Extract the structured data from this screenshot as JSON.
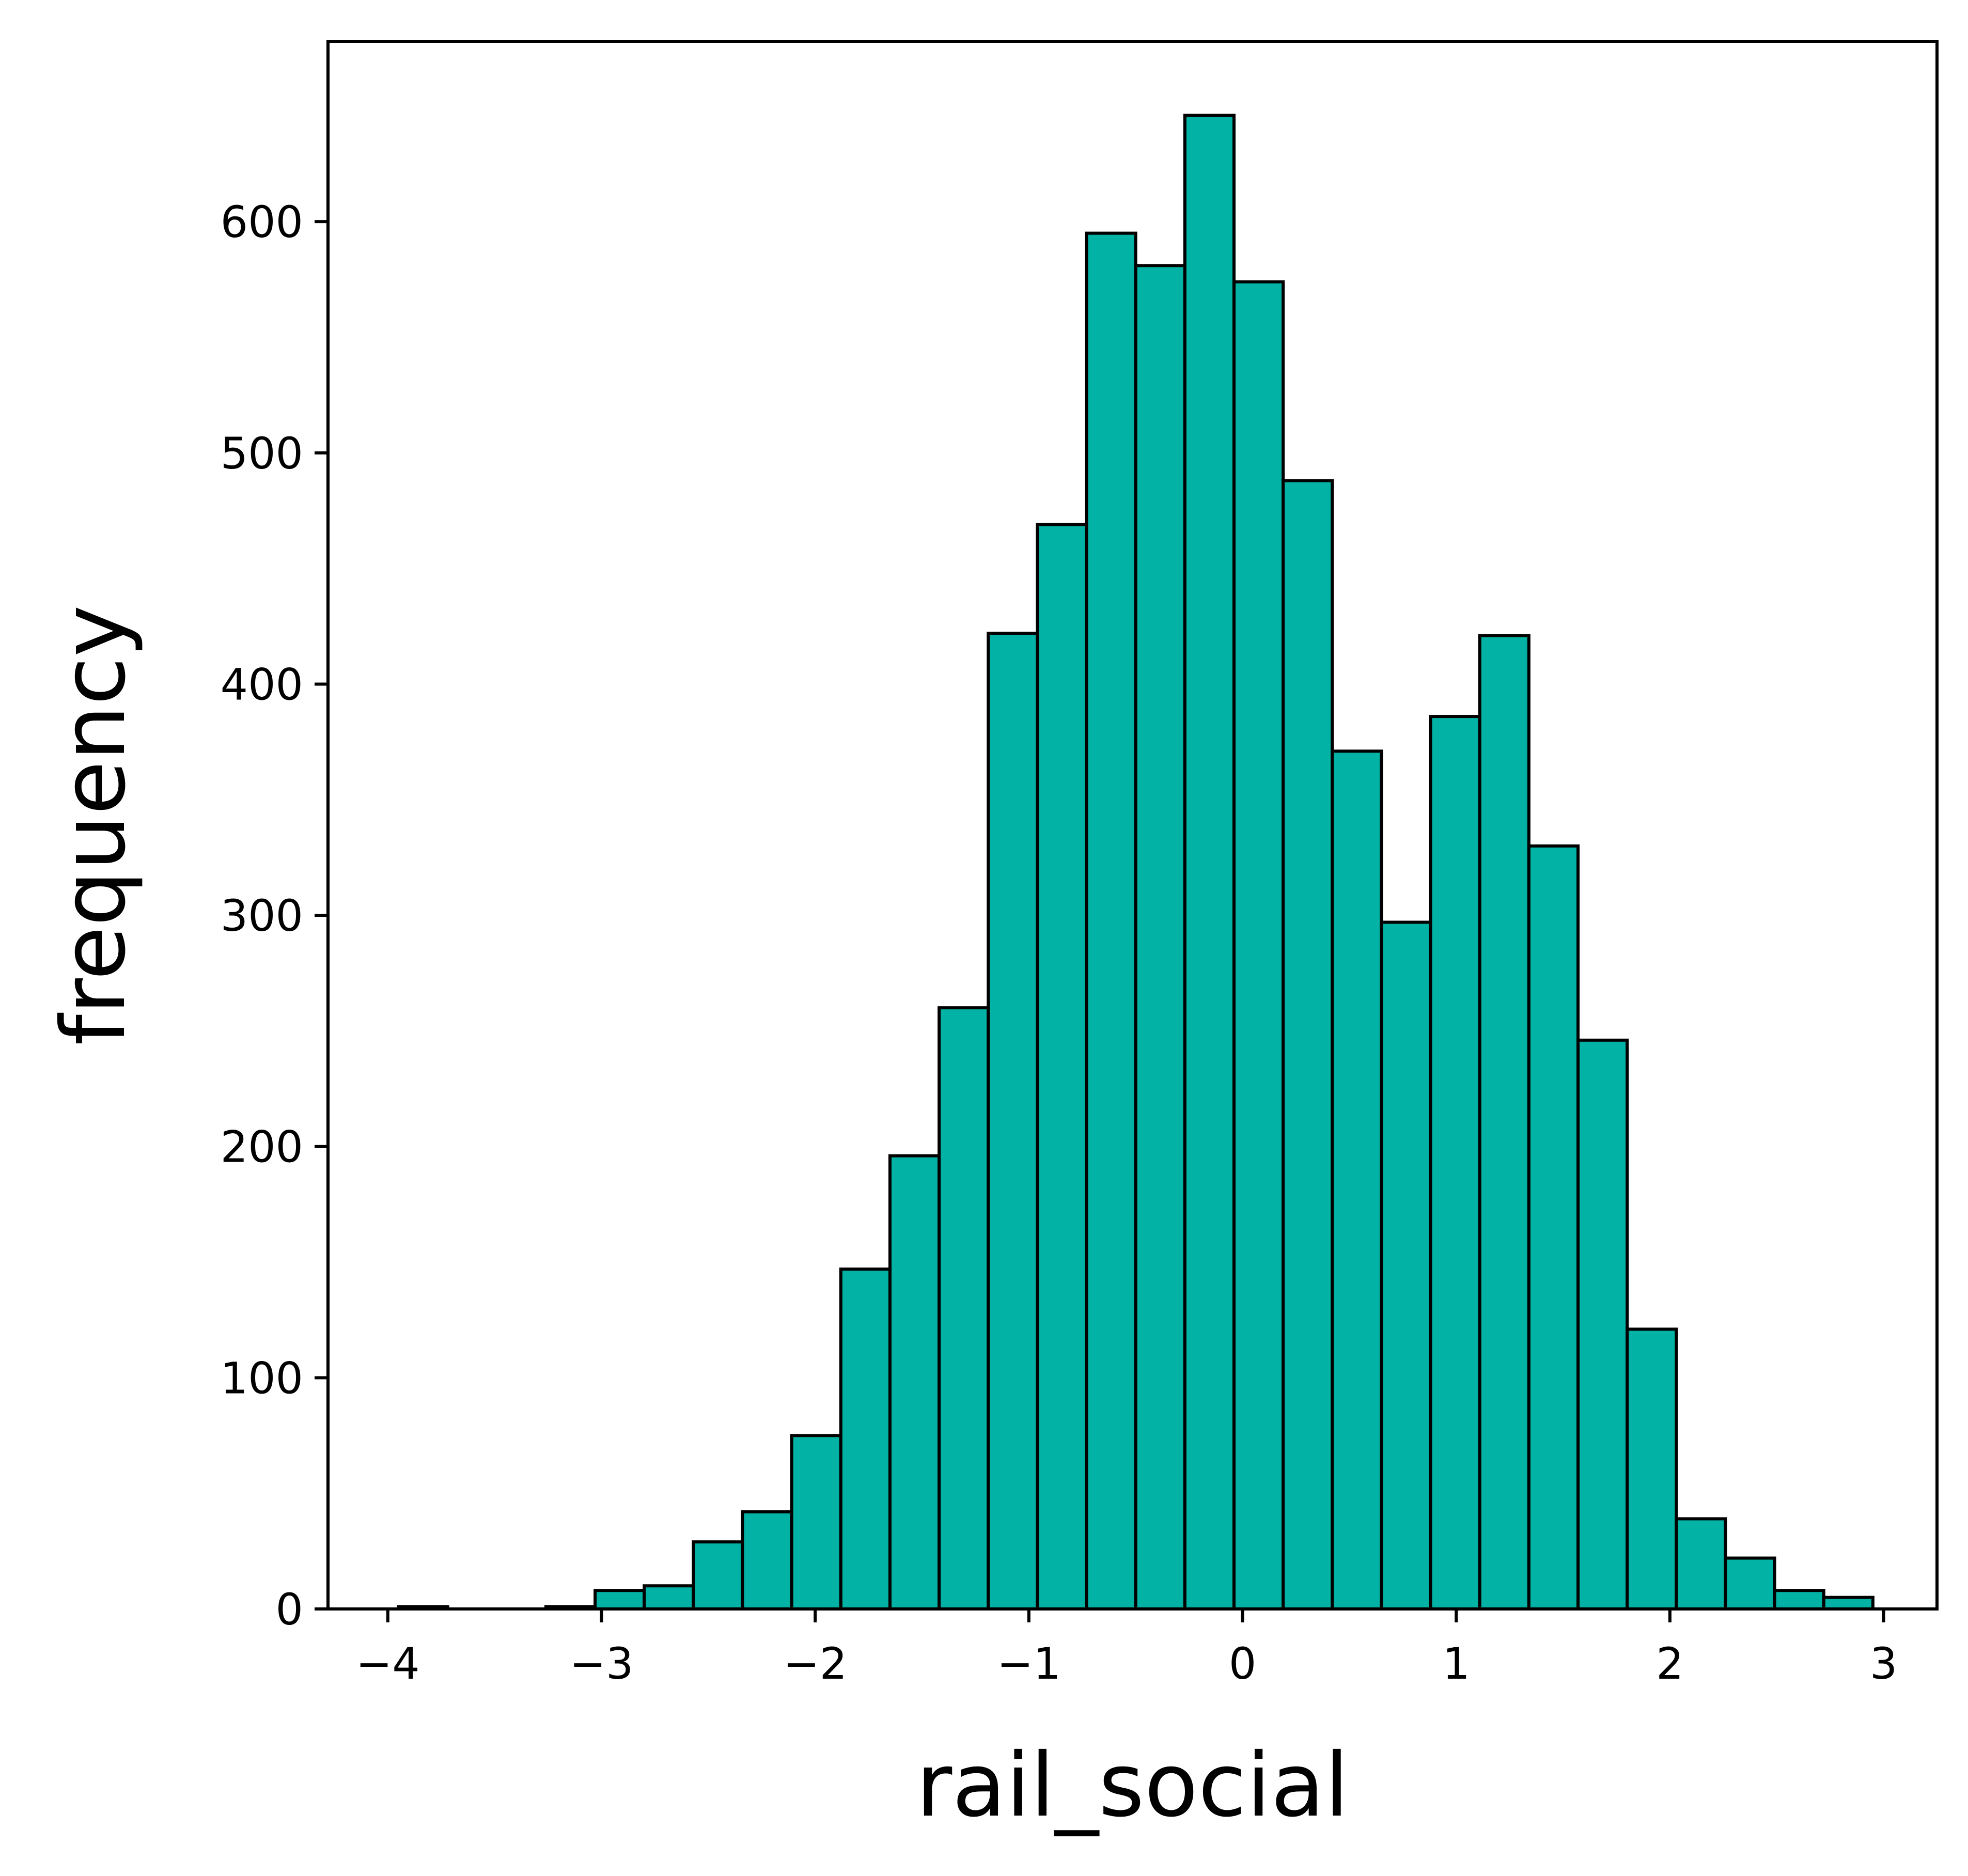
{
  "chart_data": {
    "type": "bar",
    "subtype": "histogram",
    "xlabel": "rail_social",
    "ylabel": "frequency",
    "xlim": [
      -4.28,
      3.25
    ],
    "ylim": [
      0,
      678
    ],
    "xticks": [
      -4,
      -3,
      -2,
      -1,
      0,
      1,
      2,
      3
    ],
    "xtick_labels": [
      "−4",
      "−3",
      "−2",
      "−1",
      "0",
      "1",
      "2",
      "3"
    ],
    "yticks": [
      0,
      100,
      200,
      300,
      400,
      500,
      600
    ],
    "ytick_labels": [
      "0",
      "100",
      "200",
      "300",
      "400",
      "500",
      "600"
    ],
    "grid": false,
    "bar_color": "#02b2a4",
    "edge_color": "#000000",
    "bins": [
      {
        "x0": -3.95,
        "x1": -3.72,
        "count": 1
      },
      {
        "x0": -3.72,
        "x1": -3.49,
        "count": 0
      },
      {
        "x0": -3.49,
        "x1": -3.26,
        "count": 0
      },
      {
        "x0": -3.26,
        "x1": -3.03,
        "count": 1
      },
      {
        "x0": -3.03,
        "x1": -2.8,
        "count": 8
      },
      {
        "x0": -2.8,
        "x1": -2.57,
        "count": 10
      },
      {
        "x0": -2.57,
        "x1": -2.34,
        "count": 29
      },
      {
        "x0": -2.34,
        "x1": -2.11,
        "count": 42
      },
      {
        "x0": -2.11,
        "x1": -1.88,
        "count": 75
      },
      {
        "x0": -1.88,
        "x1": -1.65,
        "count": 147
      },
      {
        "x0": -1.65,
        "x1": -1.42,
        "count": 196
      },
      {
        "x0": -1.42,
        "x1": -1.19,
        "count": 260
      },
      {
        "x0": -1.19,
        "x1": -0.96,
        "count": 422
      },
      {
        "x0": -0.96,
        "x1": -0.73,
        "count": 469
      },
      {
        "x0": -0.73,
        "x1": -0.5,
        "count": 595
      },
      {
        "x0": -0.5,
        "x1": -0.27,
        "count": 581
      },
      {
        "x0": -0.27,
        "x1": -0.04,
        "count": 646
      },
      {
        "x0": -0.04,
        "x1": 0.19,
        "count": 574
      },
      {
        "x0": 0.19,
        "x1": 0.42,
        "count": 488
      },
      {
        "x0": 0.42,
        "x1": 0.65,
        "count": 371
      },
      {
        "x0": 0.65,
        "x1": 0.88,
        "count": 297
      },
      {
        "x0": 0.88,
        "x1": 1.11,
        "count": 386
      },
      {
        "x0": 1.11,
        "x1": 1.34,
        "count": 421
      },
      {
        "x0": 1.34,
        "x1": 1.57,
        "count": 330
      },
      {
        "x0": 1.57,
        "x1": 1.8,
        "count": 246
      },
      {
        "x0": 1.8,
        "x1": 2.03,
        "count": 121
      },
      {
        "x0": 2.03,
        "x1": 2.26,
        "count": 39
      },
      {
        "x0": 2.26,
        "x1": 2.49,
        "count": 22
      },
      {
        "x0": 2.49,
        "x1": 2.72,
        "count": 8
      },
      {
        "x0": 2.72,
        "x1": 2.95,
        "count": 5
      }
    ]
  }
}
